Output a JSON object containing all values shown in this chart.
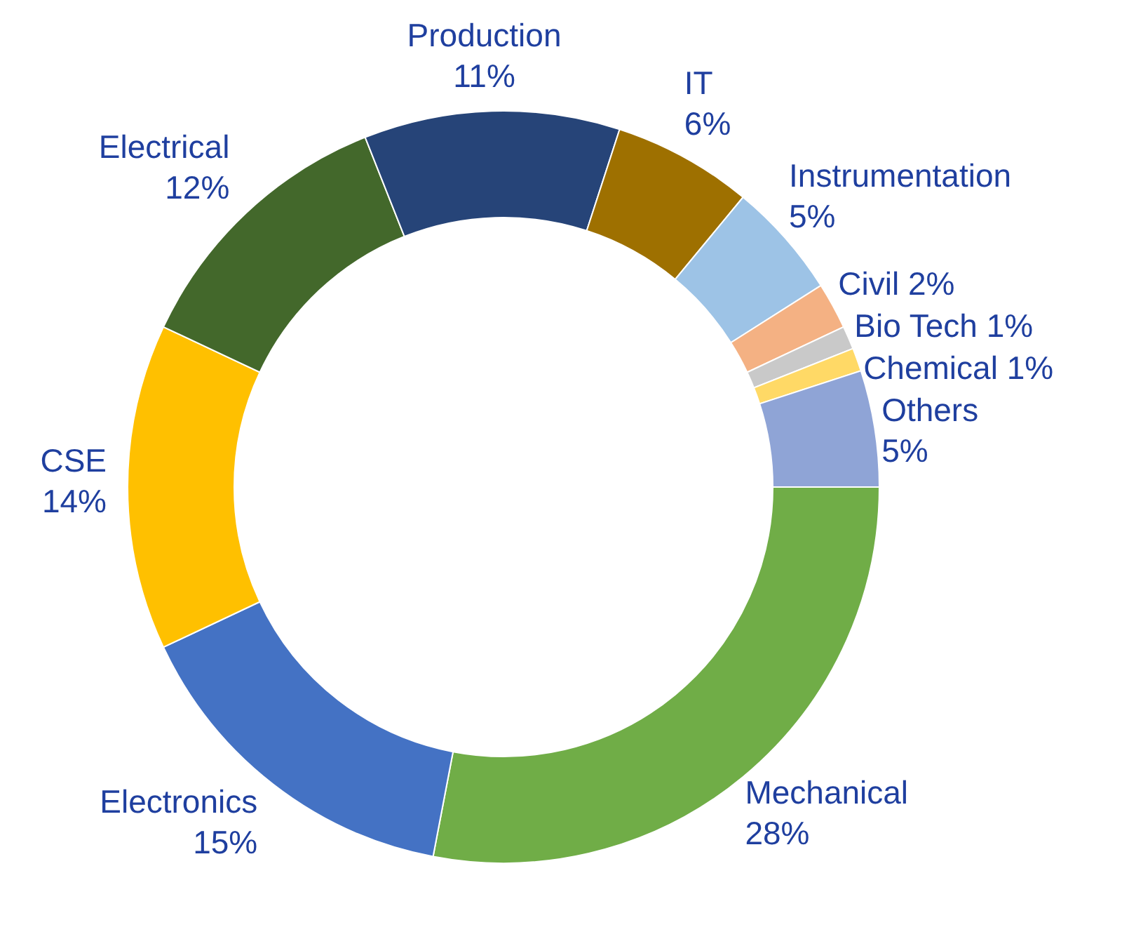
{
  "chart_data": {
    "type": "donut",
    "categories": [
      "Mechanical",
      "Electronics",
      "CSE",
      "Electrical",
      "Production",
      "IT",
      "Instrumentation",
      "Civil",
      "Bio Tech",
      "Chemical",
      "Others"
    ],
    "values": [
      28,
      15,
      14,
      12,
      11,
      6,
      5,
      2,
      1,
      1,
      5
    ],
    "value_labels": [
      "28%",
      "15%",
      "14%",
      "12%",
      "11%",
      "6%",
      "5%",
      "2%",
      "1%",
      "1%",
      "5%"
    ],
    "colors": [
      "#70ad47",
      "#4472c4",
      "#ffc000",
      "#43682b",
      "#264478",
      "#9e7000",
      "#9dc3e6",
      "#f4b183",
      "#c9c9c9",
      "#ffd966",
      "#8fa4d6"
    ]
  }
}
